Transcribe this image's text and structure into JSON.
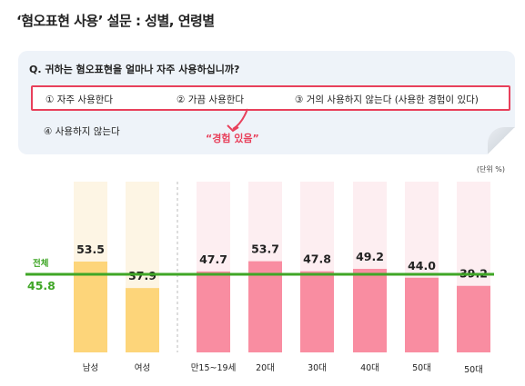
{
  "title": "‘혐오표현 사용’ 설문 : 성별, 연령별",
  "question": "Q. 귀하는 혐오표현을 얼마나 자주 사용하십니까?",
  "options": [
    "①  자주 사용한다",
    "②  가끔 사용한다",
    "③  거의 사용하지 않는다 (사용한 경험이 있다)",
    "④  사용하지 않는다"
  ],
  "experience_label": "“경험 있음”",
  "unit": "(단위 %)",
  "colors": {
    "accent_red": "#e8405b",
    "gender_bar": "#fdd57a",
    "age_bar": "#f98da1",
    "track": "#fdf5e4",
    "age_track": "#fdeef1",
    "total_line": "#3fa626"
  },
  "chart_data": {
    "type": "bar",
    "categories": [
      "남성",
      "여성",
      "만15~19세",
      "20대",
      "30대",
      "40대",
      "50대",
      "50대"
    ],
    "values": [
      53.5,
      37.9,
      47.7,
      53.7,
      47.8,
      49.2,
      44.0,
      39.2
    ],
    "value_labels": [
      "53.5",
      "37.9",
      "47.7",
      "53.7",
      "47.8",
      "49.2",
      "44.0",
      "39.2"
    ],
    "groups": [
      "gender",
      "gender",
      "age",
      "age",
      "age",
      "age",
      "age",
      "age"
    ],
    "reference_line": {
      "label": "전체",
      "value": 45.8,
      "value_label": "45.8"
    },
    "ylim": [
      0,
      100
    ]
  }
}
